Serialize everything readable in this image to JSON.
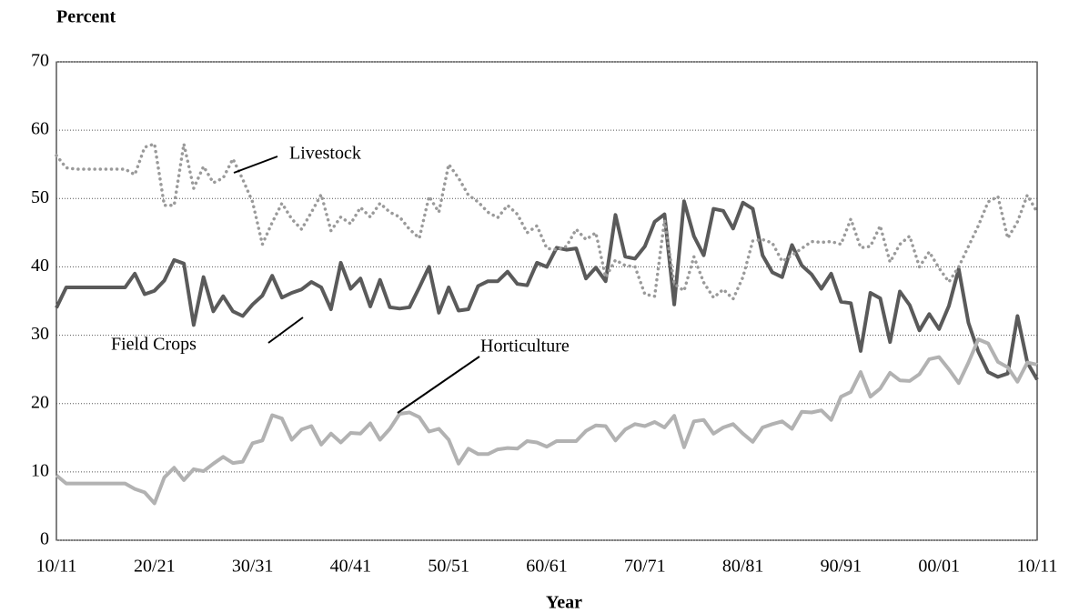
{
  "chart_data": {
    "type": "line",
    "y_label": "Percent",
    "x_label": "Year",
    "categories": [
      "10/11",
      null,
      null,
      null,
      null,
      null,
      null,
      null,
      null,
      null,
      "20/21",
      null,
      null,
      null,
      null,
      null,
      null,
      null,
      null,
      null,
      "30/31",
      null,
      null,
      null,
      null,
      null,
      null,
      null,
      null,
      null,
      "40/41",
      null,
      null,
      null,
      null,
      null,
      null,
      null,
      null,
      null,
      "50/51",
      null,
      null,
      null,
      null,
      null,
      null,
      null,
      null,
      null,
      "60/61",
      null,
      null,
      null,
      null,
      null,
      null,
      null,
      null,
      null,
      "70/71",
      null,
      null,
      null,
      null,
      null,
      null,
      null,
      null,
      null,
      "80/81",
      null,
      null,
      null,
      null,
      null,
      null,
      null,
      null,
      null,
      "90/91",
      null,
      null,
      null,
      null,
      null,
      null,
      null,
      null,
      null,
      "00/01",
      null,
      null,
      null,
      null,
      null,
      null,
      null,
      null,
      null,
      "10/11"
    ],
    "series": [
      {
        "name": "Field Crops",
        "color": "#5a5a5a",
        "style": "solid",
        "values": [
          34,
          37,
          37,
          37,
          37,
          37,
          37,
          37,
          39,
          36,
          36.5,
          38,
          41,
          40.5,
          31.5,
          38.5,
          33.5,
          35.7,
          33.5,
          32.8,
          34.5,
          35.8,
          38.7,
          35.5,
          36.2,
          36.7,
          37.8,
          37,
          33.8,
          40.6,
          36.8,
          38.3,
          34.2,
          38.1,
          34.1,
          33.9,
          34.1,
          37,
          40,
          33.3,
          37,
          33.6,
          33.8,
          37.2,
          37.9,
          37.9,
          39.3,
          37.5,
          37.3,
          40.6,
          40,
          42.8,
          42.5,
          42.7,
          38.3,
          39.9,
          37.9,
          47.6,
          41.5,
          41.2,
          43,
          46.6,
          47.7,
          34.5,
          49.6,
          44.5,
          41.7,
          48.5,
          48.2,
          45.6,
          49.4,
          48.5,
          41.7,
          39.2,
          38.5,
          43.2,
          40.2,
          38.9,
          36.8,
          39,
          34.9,
          34.7,
          27.7,
          36.2,
          35.4,
          29,
          36.4,
          34.4,
          30.7,
          33.1,
          30.9,
          34.3,
          39.7,
          31.8,
          27.6,
          24.6,
          23.9,
          24.4,
          32.8,
          26,
          23.5
        ]
      },
      {
        "name": "Livestock",
        "color": "#9a9a9a",
        "style": "dotted",
        "values": [
          56.3,
          54.5,
          54.3,
          54.3,
          54.3,
          54.3,
          54.3,
          54.3,
          53.5,
          57.5,
          58,
          49,
          49,
          58,
          51.5,
          54.7,
          52.3,
          53,
          55.8,
          52.8,
          49.5,
          43.3,
          46.5,
          49.3,
          47,
          45.5,
          48,
          50.6,
          45.3,
          47.3,
          46.3,
          48.7,
          47.3,
          49.3,
          48,
          47.3,
          45.5,
          44.2,
          50.3,
          48,
          55,
          53,
          50.5,
          49.5,
          48,
          47.2,
          49,
          47.7,
          45,
          46,
          42.7,
          42.5,
          43,
          45.5,
          44,
          45,
          38.5,
          41,
          40.2,
          40,
          36,
          35.7,
          46.8,
          37.5,
          36.5,
          41.5,
          37.7,
          35.5,
          36.7,
          35.3,
          38.5,
          43.8,
          44,
          43.5,
          40.8,
          41.7,
          42.7,
          43.7,
          43.6,
          43.7,
          43.3,
          47,
          42.8,
          43,
          46,
          40.7,
          43.3,
          44.5,
          40,
          42.2,
          39.8,
          37.8,
          40,
          43,
          46,
          49.5,
          50.3,
          44.2,
          46.6,
          50.5,
          48
        ]
      },
      {
        "name": "Horticulture",
        "color": "#b2b2b2",
        "style": "solid",
        "values": [
          9.5,
          8.3,
          8.3,
          8.3,
          8.3,
          8.3,
          8.3,
          8.3,
          7.5,
          7,
          5.4,
          9.2,
          10.6,
          8.8,
          10.4,
          10.1,
          11.2,
          12.2,
          11.3,
          11.5,
          14.2,
          14.6,
          18.3,
          17.8,
          14.7,
          16.2,
          16.7,
          14,
          15.6,
          14.3,
          15.7,
          15.6,
          17.1,
          14.7,
          16.3,
          18.5,
          18.7,
          18,
          15.9,
          16.3,
          14.7,
          11.2,
          13.4,
          12.6,
          12.6,
          13.3,
          13.5,
          13.4,
          14.5,
          14.3,
          13.7,
          14.5,
          14.5,
          14.5,
          16,
          16.8,
          16.7,
          14.6,
          16.2,
          17,
          16.7,
          17.3,
          16.5,
          18.2,
          13.6,
          17.4,
          17.6,
          15.6,
          16.5,
          17,
          15.6,
          14.4,
          16.5,
          17,
          17.4,
          16.3,
          18.8,
          18.7,
          19,
          17.6,
          21,
          21.7,
          24.6,
          21,
          22.2,
          24.5,
          23.4,
          23.3,
          24.3,
          26.5,
          26.8,
          25,
          23,
          26,
          29.4,
          28.8,
          26.1,
          25.3,
          23.2,
          26,
          25.7
        ]
      }
    ],
    "ylim": [
      0,
      70
    ],
    "yticks": [
      0,
      10,
      20,
      30,
      40,
      50,
      60,
      70
    ],
    "grid": true
  }
}
